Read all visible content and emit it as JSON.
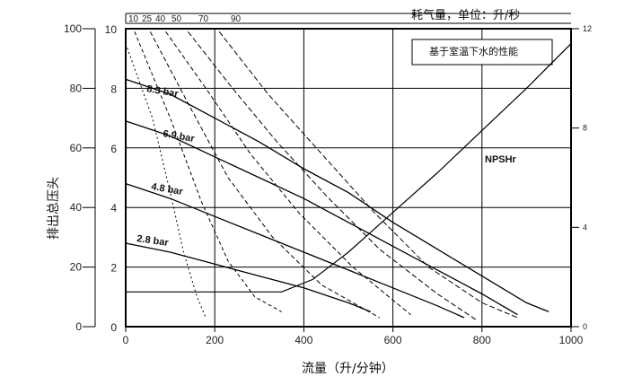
{
  "chart_data": {
    "type": "line",
    "title": "耗气量，单位：升/秒",
    "legend_box": "基于室温下水的性能",
    "xlabel": "流量（升/分钟）",
    "ylabel": "排出总压头",
    "x_ticks": [
      "0",
      "200",
      "400",
      "600",
      "800",
      "1000"
    ],
    "xlim": [
      0,
      1000
    ],
    "y_ticks": [
      "0",
      "20",
      "40",
      "60",
      "80",
      "100"
    ],
    "ylim": [
      0,
      100
    ],
    "y_inner_ticks": [
      "0",
      "2",
      "4",
      "6",
      "8",
      "10"
    ],
    "y_right_ticks": [
      "0",
      "4",
      "8",
      "12"
    ],
    "y_right_lim": [
      0,
      12
    ],
    "air_ticks": [
      "10",
      "25",
      "40",
      "50",
      "70",
      "90"
    ],
    "grid": true,
    "series": [
      {
        "name": "8.3 bar",
        "label": "8.3 bar",
        "points": [
          [
            0,
            83
          ],
          [
            100,
            78
          ],
          [
            200,
            70
          ],
          [
            300,
            62
          ],
          [
            400,
            53
          ],
          [
            500,
            45
          ],
          [
            600,
            35
          ],
          [
            700,
            26
          ],
          [
            800,
            17
          ],
          [
            900,
            8
          ],
          [
            950,
            5
          ]
        ]
      },
      {
        "name": "6.9 bar",
        "label": "6.9 bar",
        "points": [
          [
            0,
            69
          ],
          [
            100,
            64
          ],
          [
            200,
            57
          ],
          [
            300,
            50
          ],
          [
            400,
            43
          ],
          [
            500,
            35
          ],
          [
            600,
            27
          ],
          [
            700,
            19
          ],
          [
            800,
            11
          ],
          [
            880,
            4
          ]
        ]
      },
      {
        "name": "4.8 bar",
        "label": "4.8 bar",
        "points": [
          [
            0,
            48
          ],
          [
            100,
            43
          ],
          [
            200,
            37
          ],
          [
            300,
            31
          ],
          [
            400,
            25
          ],
          [
            500,
            19
          ],
          [
            600,
            13
          ],
          [
            700,
            7
          ],
          [
            760,
            3
          ]
        ]
      },
      {
        "name": "2.8 bar",
        "label": "2.8 bar",
        "points": [
          [
            0,
            28
          ],
          [
            100,
            25
          ],
          [
            200,
            21
          ],
          [
            300,
            17
          ],
          [
            400,
            13
          ],
          [
            500,
            8
          ],
          [
            550,
            5
          ]
        ]
      }
    ],
    "npsh": {
      "label": "NPSHr",
      "points": [
        [
          0,
          1.4
        ],
        [
          350,
          1.4
        ],
        [
          420,
          1.9
        ],
        [
          500,
          3.0
        ],
        [
          600,
          4.6
        ],
        [
          700,
          6.2
        ],
        [
          800,
          7.9
        ],
        [
          900,
          9.6
        ],
        [
          1000,
          11.4
        ]
      ]
    },
    "air_curves": [
      {
        "label": "10",
        "points": [
          [
            0,
            95
          ],
          [
            60,
            70
          ],
          [
            100,
            45
          ],
          [
            130,
            25
          ],
          [
            160,
            10
          ],
          [
            180,
            3
          ]
        ]
      },
      {
        "label": "25",
        "points": [
          [
            20,
            99
          ],
          [
            100,
            70
          ],
          [
            170,
            42
          ],
          [
            230,
            22
          ],
          [
            290,
            10
          ],
          [
            350,
            5
          ]
        ]
      },
      {
        "label": "40",
        "points": [
          [
            55,
            99
          ],
          [
            140,
            75
          ],
          [
            230,
            50
          ],
          [
            330,
            30
          ],
          [
            440,
            14
          ],
          [
            570,
            3
          ]
        ]
      },
      {
        "label": "50",
        "points": [
          [
            90,
            99
          ],
          [
            180,
            80
          ],
          [
            280,
            58
          ],
          [
            390,
            38
          ],
          [
            510,
            20
          ],
          [
            640,
            4
          ]
        ]
      },
      {
        "label": "70",
        "points": [
          [
            140,
            99
          ],
          [
            240,
            80
          ],
          [
            340,
            62
          ],
          [
            450,
            44
          ],
          [
            570,
            26
          ],
          [
            700,
            11
          ],
          [
            790,
            2
          ]
        ]
      },
      {
        "label": "90",
        "points": [
          [
            210,
            99
          ],
          [
            320,
            78
          ],
          [
            440,
            58
          ],
          [
            560,
            38
          ],
          [
            680,
            20
          ],
          [
            800,
            8
          ],
          [
            880,
            3
          ]
        ]
      }
    ]
  }
}
